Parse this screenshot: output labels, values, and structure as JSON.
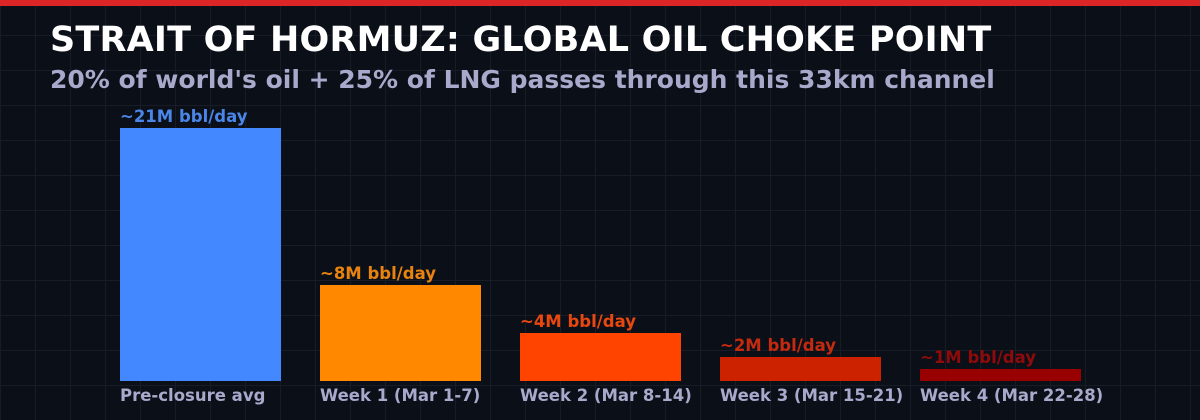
{
  "header": {
    "title": "STRAIT OF HORMUZ: GLOBAL OIL CHOKE POINT",
    "subtitle": "20% of world's oil + 25% of LNG passes through this 33km channel",
    "accent_color": "#dc2626"
  },
  "chart_data": {
    "type": "bar",
    "title": "STRAIT OF HORMUZ: GLOBAL OIL CHOKE POINT",
    "subtitle": "20% of world's oil + 25% of LNG passes through this 33km channel",
    "xlabel": "",
    "ylabel": "",
    "unit": "M bbl/day",
    "categories": [
      "Pre-closure avg",
      "Week 1 (Mar 1-7)",
      "Week 2 (Mar 8-14)",
      "Week 3 (Mar 15-21)",
      "Week 4 (Mar 22-28)"
    ],
    "values": [
      21,
      8,
      4,
      2,
      1
    ],
    "data_labels": [
      "~21M bbl/day",
      "~8M bbl/day",
      "~4M bbl/day",
      "~2M bbl/day",
      "~1M bbl/day"
    ],
    "colors": [
      "#4488ff",
      "#ff8800",
      "#ff4400",
      "#cc2200",
      "#990000"
    ],
    "label_colors": [
      "#4a86e8",
      "#e8830f",
      "#e8470f",
      "#c42a10",
      "#8f0a0a"
    ],
    "grid": true,
    "legend": null,
    "ylim": [
      0,
      21
    ]
  }
}
